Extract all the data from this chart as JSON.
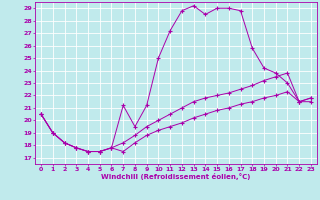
{
  "xlabel": "Windchill (Refroidissement éolien,°C)",
  "bg_color": "#c0eaec",
  "line_color": "#aa00aa",
  "grid_color": "#ffffff",
  "xlim": [
    -0.5,
    23.5
  ],
  "ylim": [
    16.5,
    29.5
  ],
  "yticks": [
    17,
    18,
    19,
    20,
    21,
    22,
    23,
    24,
    25,
    26,
    27,
    28,
    29
  ],
  "xticks": [
    0,
    1,
    2,
    3,
    4,
    5,
    6,
    7,
    8,
    9,
    10,
    11,
    12,
    13,
    14,
    15,
    16,
    17,
    18,
    19,
    20,
    21,
    22,
    23
  ],
  "line1_x": [
    0,
    1,
    2,
    3,
    4,
    5,
    6,
    7,
    8,
    9,
    10,
    11,
    12,
    13,
    14,
    15,
    16,
    17,
    18,
    19,
    20,
    21,
    22,
    23
  ],
  "line1_y": [
    20.5,
    19.0,
    18.2,
    17.8,
    17.5,
    17.5,
    17.8,
    21.2,
    19.5,
    21.2,
    25.0,
    27.2,
    28.8,
    29.2,
    28.5,
    29.0,
    29.0,
    28.8,
    25.8,
    24.2,
    23.8,
    23.0,
    21.5,
    21.5
  ],
  "line2_x": [
    0,
    1,
    2,
    3,
    4,
    5,
    6,
    7,
    8,
    9,
    10,
    11,
    12,
    13,
    14,
    15,
    16,
    17,
    18,
    19,
    20,
    21,
    22,
    23
  ],
  "line2_y": [
    20.5,
    19.0,
    18.2,
    17.8,
    17.5,
    17.5,
    17.8,
    18.2,
    18.8,
    19.5,
    20.0,
    20.5,
    21.0,
    21.5,
    21.8,
    22.0,
    22.2,
    22.5,
    22.8,
    23.2,
    23.5,
    23.8,
    21.5,
    21.8
  ],
  "line3_x": [
    0,
    1,
    2,
    3,
    4,
    5,
    6,
    7,
    8,
    9,
    10,
    11,
    12,
    13,
    14,
    15,
    16,
    17,
    18,
    19,
    20,
    21,
    22,
    23
  ],
  "line3_y": [
    20.5,
    19.0,
    18.2,
    17.8,
    17.5,
    17.5,
    17.8,
    17.5,
    18.2,
    18.8,
    19.2,
    19.5,
    19.8,
    20.2,
    20.5,
    20.8,
    21.0,
    21.3,
    21.5,
    21.8,
    22.0,
    22.3,
    21.5,
    21.8
  ]
}
